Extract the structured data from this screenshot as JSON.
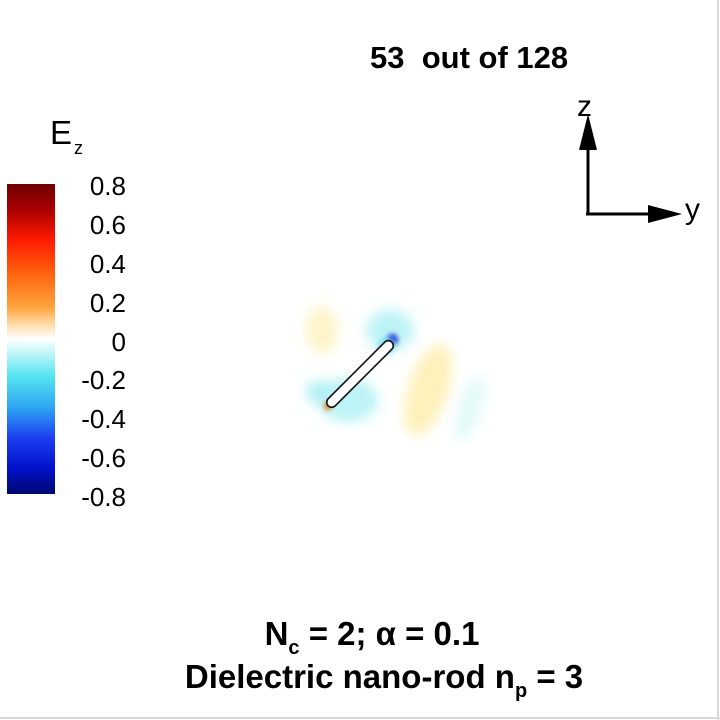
{
  "frame_counter": "53  out of 128",
  "legend": {
    "title": "E",
    "title_subscript": "z",
    "ticks": [
      "0.8",
      "0.6",
      "0.4",
      "0.2",
      "0",
      "-0.2",
      "-0.4",
      "-0.6",
      "-0.8"
    ],
    "range": [
      -0.8,
      0.8
    ],
    "colors": [
      "#7a0000",
      "#c40000",
      "#ff2a00",
      "#ff8a1a",
      "#ffd9a0",
      "#ffffff",
      "#b9f3f5",
      "#4fe1ee",
      "#2f6ff0",
      "#0a1fd6",
      "#000a7a"
    ]
  },
  "axes": {
    "vertical_label": "z",
    "horizontal_label": "y"
  },
  "caption": {
    "line1_a": "N",
    "line1_sub": "c",
    "line1_b": " = 2; α = 0.1",
    "line2_a": "Dielectric nano-rod n",
    "line2_sub": "p",
    "line2_b": " = 3"
  }
}
